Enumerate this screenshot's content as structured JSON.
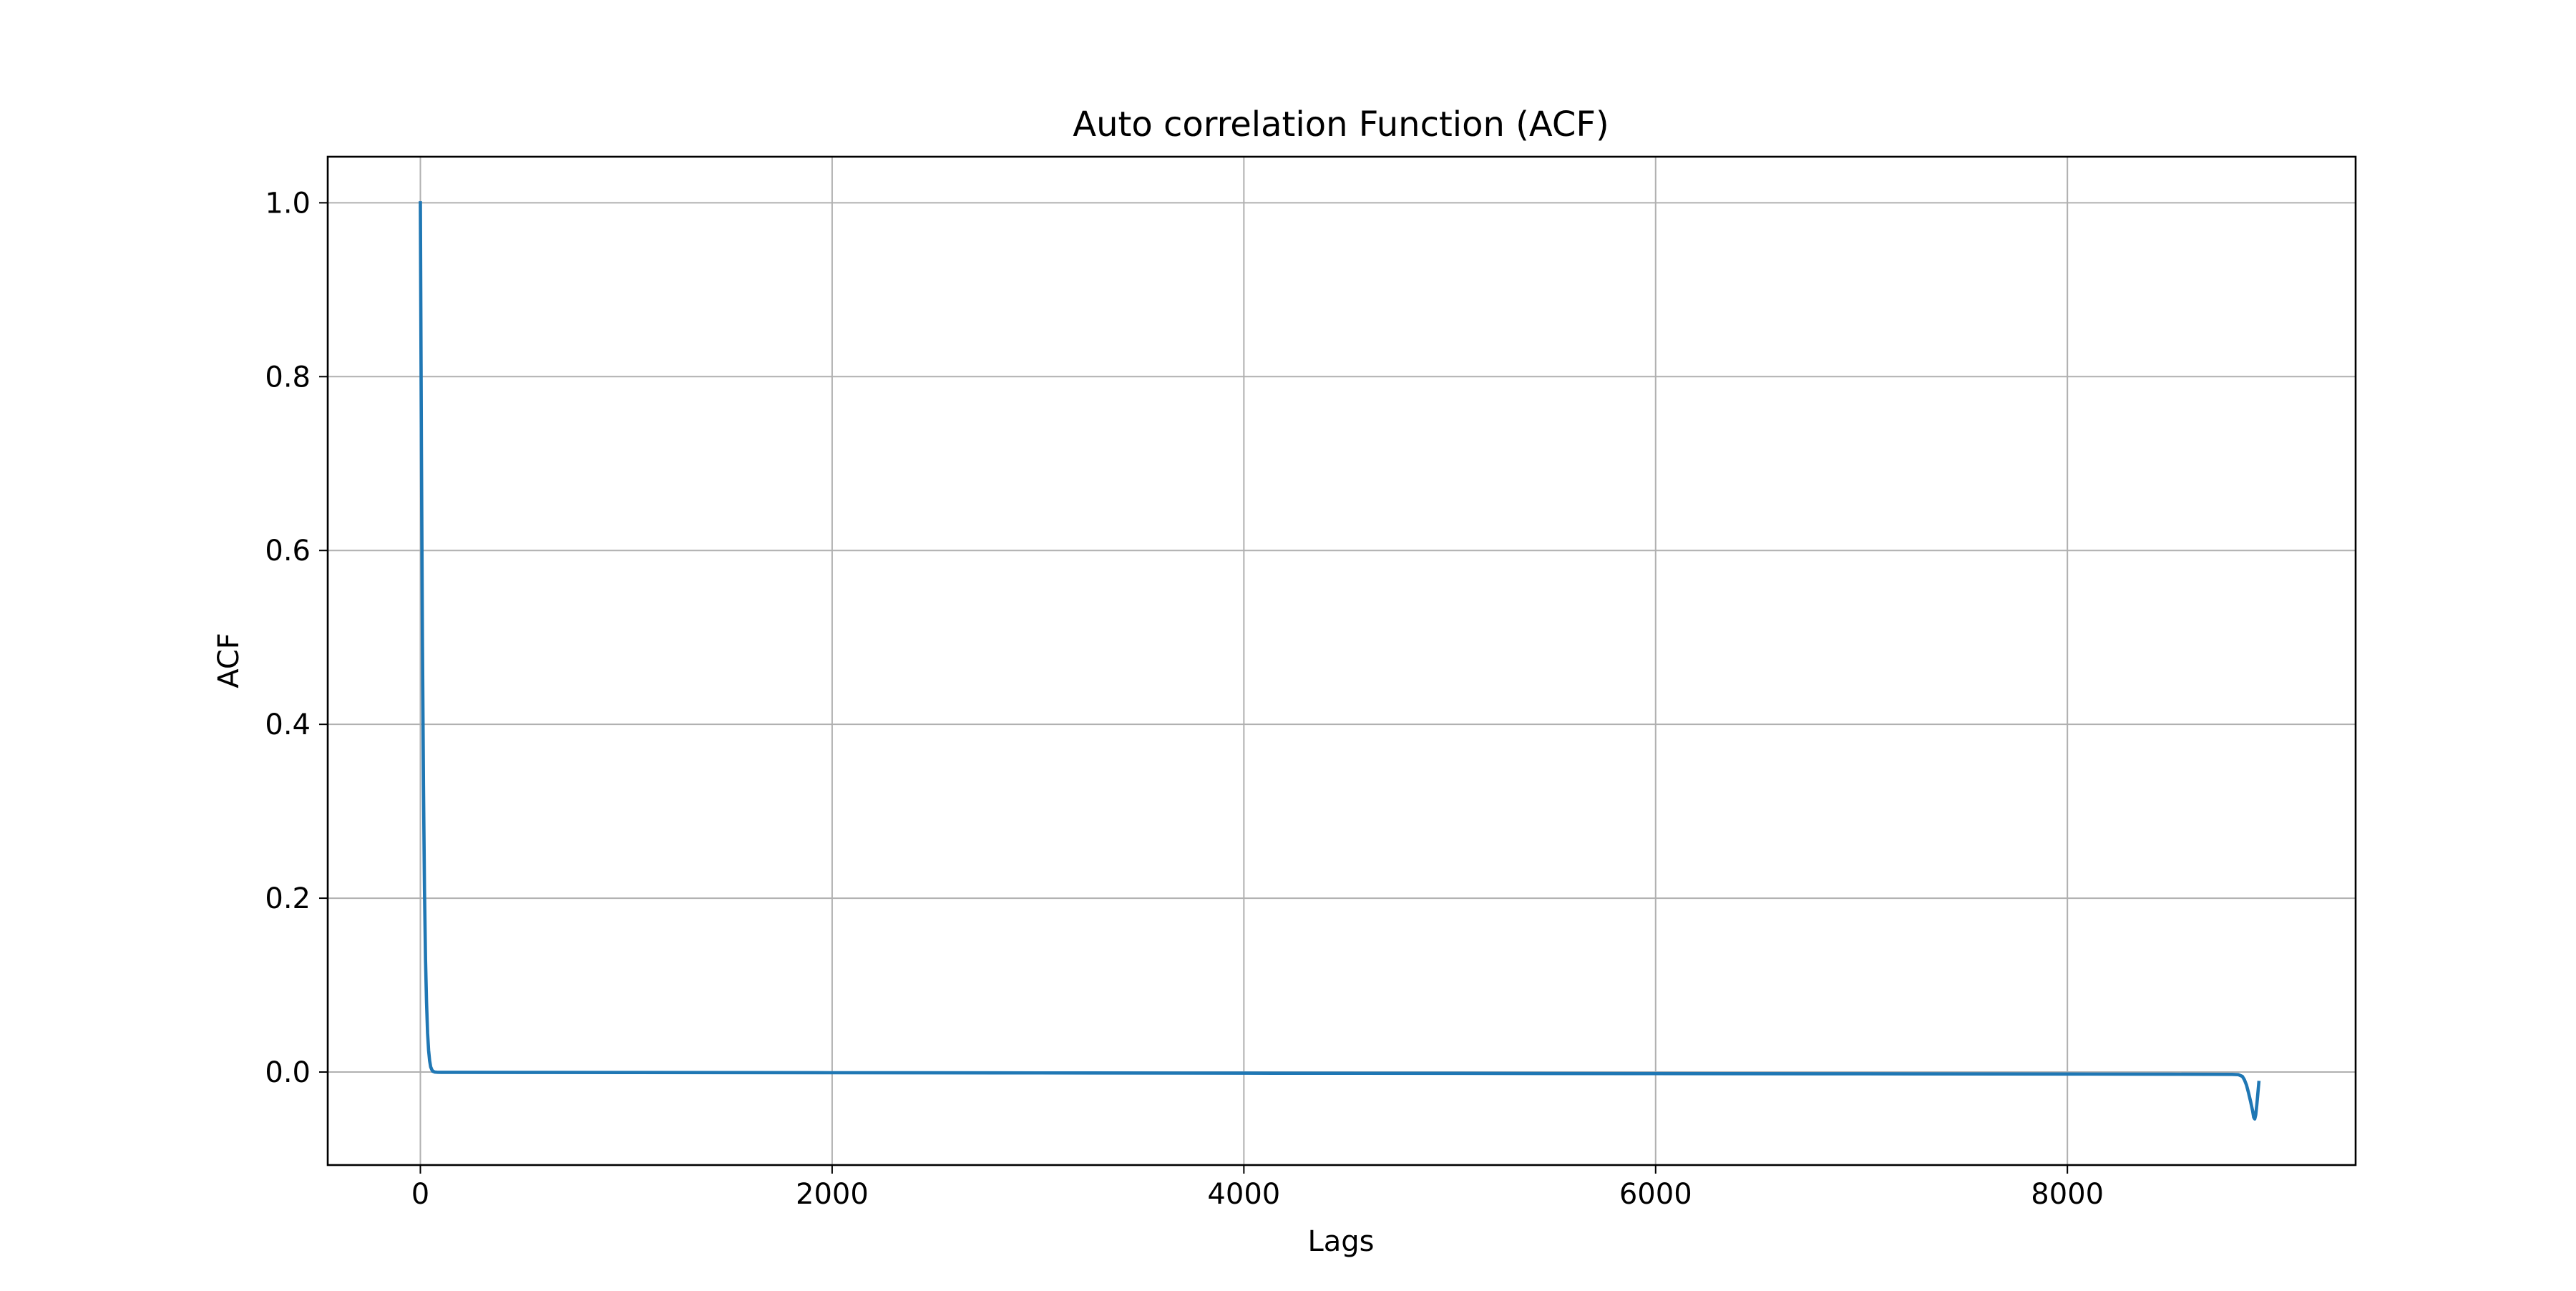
{
  "chart_data": {
    "type": "line",
    "title": "Auto correlation Function (ACF)",
    "xlabel": "Lags",
    "ylabel": "ACF",
    "xlim": [
      -450,
      9400
    ],
    "ylim": [
      -0.107,
      1.053
    ],
    "xticks": [
      0,
      2000,
      4000,
      6000,
      8000
    ],
    "xtick_labels": [
      "0",
      "2000",
      "4000",
      "6000",
      "8000"
    ],
    "yticks": [
      0.0,
      0.2,
      0.4,
      0.6,
      0.8,
      1.0
    ],
    "ytick_labels": [
      "0.0",
      "0.2",
      "0.4",
      "0.6",
      "0.8",
      "1.0"
    ],
    "grid": true,
    "legend": "none",
    "series": [
      {
        "color": "#1f77b4",
        "x": [
          0,
          5,
          10,
          15,
          20,
          25,
          30,
          35,
          40,
          45,
          50,
          55,
          60,
          70,
          80,
          100,
          500,
          1000,
          2000,
          3000,
          4000,
          5000,
          6000,
          7000,
          8000,
          8500,
          8800,
          8830,
          8850,
          8860,
          8870,
          8880,
          8890,
          8900,
          8905,
          8910,
          8915,
          8920,
          8925,
          8930
        ],
        "y": [
          1.0,
          0.72,
          0.5,
          0.33,
          0.21,
          0.13,
          0.08,
          0.045,
          0.025,
          0.013,
          0.006,
          0.003,
          0.001,
          0.0,
          -0.0002,
          -0.0003,
          -0.0004,
          -0.0005,
          -0.0008,
          -0.001,
          -0.0013,
          -0.0015,
          -0.0018,
          -0.002,
          -0.0023,
          -0.0025,
          -0.0027,
          -0.003,
          -0.005,
          -0.009,
          -0.015,
          -0.024,
          -0.034,
          -0.045,
          -0.052,
          -0.054,
          -0.049,
          -0.038,
          -0.025,
          -0.012
        ]
      }
    ]
  }
}
